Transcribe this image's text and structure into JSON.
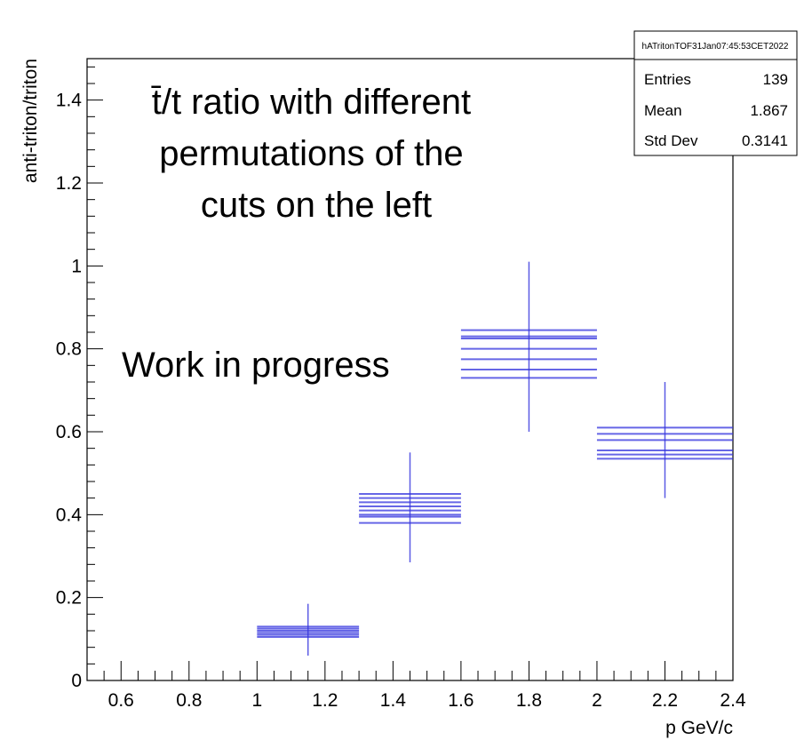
{
  "chart_data": {
    "type": "errorbar",
    "title": "",
    "xlabel": "p GeV/c",
    "ylabel": "anti-triton/triton",
    "xlim": [
      0.5,
      2.4
    ],
    "ylim": [
      0,
      1.5
    ],
    "x_ticks": [
      0.6,
      0.8,
      1,
      1.2,
      1.4,
      1.6,
      1.8,
      2,
      2.2,
      2.4
    ],
    "x_tick_labels": [
      "0.6",
      "0.8",
      "1",
      "1.2",
      "1.4",
      "1.6",
      "1.8",
      "2",
      "2.2",
      "2.4"
    ],
    "y_ticks": [
      0,
      0.2,
      0.4,
      0.6,
      0.8,
      1.0,
      1.2,
      1.4
    ],
    "y_tick_labels": [
      "0",
      "0.2",
      "0.4",
      "0.6",
      "0.8",
      "1",
      "1.2",
      "1.4"
    ],
    "color": "#3333dd",
    "bins": [
      {
        "xlow": 1.0,
        "xhigh": 1.3,
        "center": 1.15,
        "values": [
          0.105,
          0.11,
          0.115,
          0.12,
          0.125,
          0.13
        ],
        "err_low": 0.06,
        "err_high": 0.185
      },
      {
        "xlow": 1.3,
        "xhigh": 1.6,
        "center": 1.45,
        "values": [
          0.38,
          0.395,
          0.4,
          0.41,
          0.42,
          0.43,
          0.44,
          0.45
        ],
        "err_low": 0.285,
        "err_high": 0.55
      },
      {
        "xlow": 1.6,
        "xhigh": 2.0,
        "center": 1.8,
        "values": [
          0.73,
          0.75,
          0.775,
          0.8,
          0.825,
          0.83,
          0.845
        ],
        "err_low": 0.6,
        "err_high": 1.01
      },
      {
        "xlow": 2.0,
        "xhigh": 2.4,
        "center": 2.2,
        "values": [
          0.535,
          0.545,
          0.555,
          0.58,
          0.595,
          0.61
        ],
        "err_low": 0.44,
        "err_high": 0.72
      }
    ],
    "annotations": [
      {
        "lines": [
          "t̄/t ratio with different",
          "permutations of the",
          "cuts on the left"
        ]
      },
      {
        "lines": [
          "Work in progress"
        ]
      }
    ],
    "stats_box": {
      "name": "hATritonTOF31Jan07:45:53CET2022",
      "rows": [
        {
          "label": "Entries",
          "value": "139"
        },
        {
          "label": "Mean",
          "value": "1.867"
        },
        {
          "label": "Std Dev",
          "value": "0.3141"
        }
      ]
    }
  }
}
